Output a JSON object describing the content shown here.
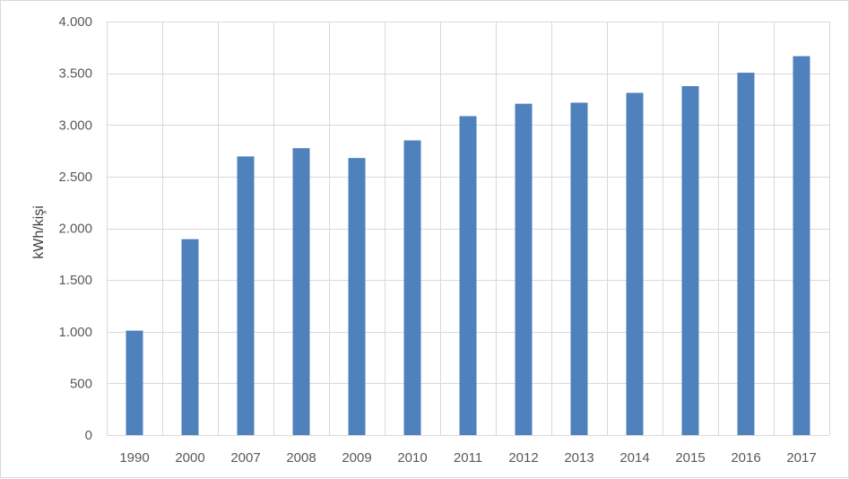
{
  "chart_data": {
    "type": "bar",
    "title": "",
    "xlabel": "",
    "ylabel": "kWh/kişi",
    "categories": [
      "1990",
      "2000",
      "2007",
      "2008",
      "2009",
      "2010",
      "2011",
      "2012",
      "2013",
      "2014",
      "2015",
      "2016",
      "2017"
    ],
    "values": [
      1010,
      1895,
      2695,
      2775,
      2680,
      2850,
      3085,
      3205,
      3215,
      3310,
      3375,
      3505,
      3665
    ],
    "ylim": [
      0,
      4000
    ],
    "yticks": [
      0,
      500,
      1000,
      1500,
      2000,
      2500,
      3000,
      3500,
      4000
    ],
    "ytick_labels": [
      "0",
      "500",
      "1.000",
      "1.500",
      "2.000",
      "2.500",
      "3.000",
      "3.500",
      "4.000"
    ],
    "grid": true,
    "bar_color": "#4f81bd",
    "grid_color": "#d9d9d9",
    "legend": "none"
  }
}
